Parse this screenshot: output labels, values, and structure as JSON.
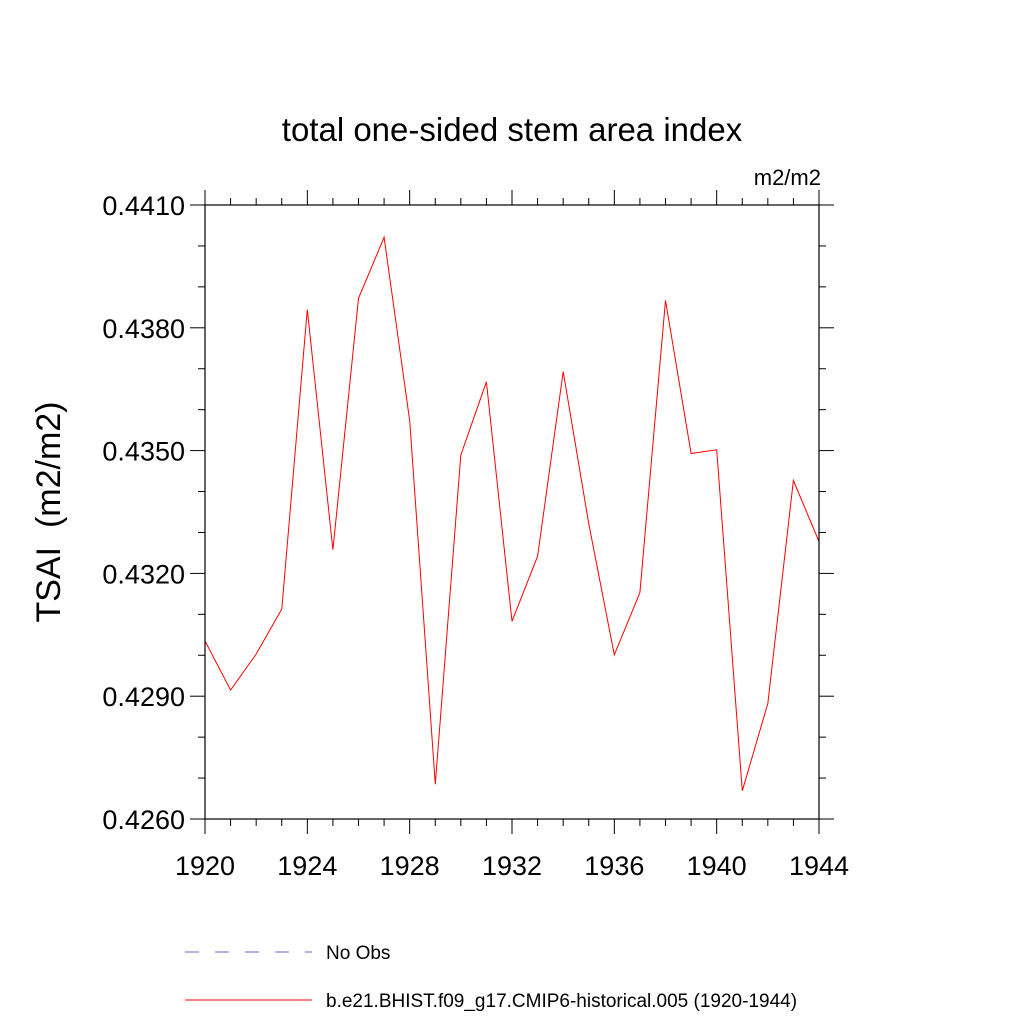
{
  "chart_data": {
    "type": "line",
    "title": "total one-sided stem area index",
    "units_label": "m2/m2",
    "ylabel": "TSAI  (m2/m2)",
    "xlabel": "",
    "xlim": [
      1920,
      1944
    ],
    "ylim": [
      0.426,
      0.441
    ],
    "x_ticks": [
      1920,
      1924,
      1928,
      1932,
      1936,
      1940,
      1944
    ],
    "x_tick_labels": [
      "1920",
      "1924",
      "1928",
      "1932",
      "1936",
      "1940",
      "1944"
    ],
    "y_ticks": [
      0.426,
      0.429,
      0.432,
      0.435,
      0.438,
      0.441
    ],
    "y_tick_labels": [
      "0.4260",
      "0.4290",
      "0.4320",
      "0.4350",
      "0.4380",
      "0.4410"
    ],
    "grid": false,
    "legend_position": "bottom",
    "series": [
      {
        "name": "b.e21.BHIST.f09_g17.CMIP6-historical.005 (1920-1944)",
        "color": "#ff0000",
        "style": "solid",
        "x": [
          1920,
          1921,
          1922,
          1923,
          1924,
          1925,
          1926,
          1927,
          1928,
          1929,
          1930,
          1931,
          1932,
          1933,
          1934,
          1935,
          1936,
          1937,
          1938,
          1939,
          1940,
          1941,
          1942,
          1943,
          1944
        ],
        "values": [
          0.43035,
          0.42915,
          0.43003,
          0.43113,
          0.43845,
          0.43258,
          0.43872,
          0.44021,
          0.43573,
          0.42685,
          0.43489,
          0.43668,
          0.43083,
          0.43242,
          0.43693,
          0.43321,
          0.43001,
          0.43153,
          0.43867,
          0.43493,
          0.43502,
          0.42669,
          0.42882,
          0.43427,
          0.43278
        ]
      }
    ],
    "legend": [
      {
        "label": "No Obs",
        "color": "#6666cc",
        "style": "dashed"
      },
      {
        "label": "b.e21.BHIST.f09_g17.CMIP6-historical.005 (1920-1944)",
        "color": "#ff0000",
        "style": "solid"
      }
    ]
  }
}
